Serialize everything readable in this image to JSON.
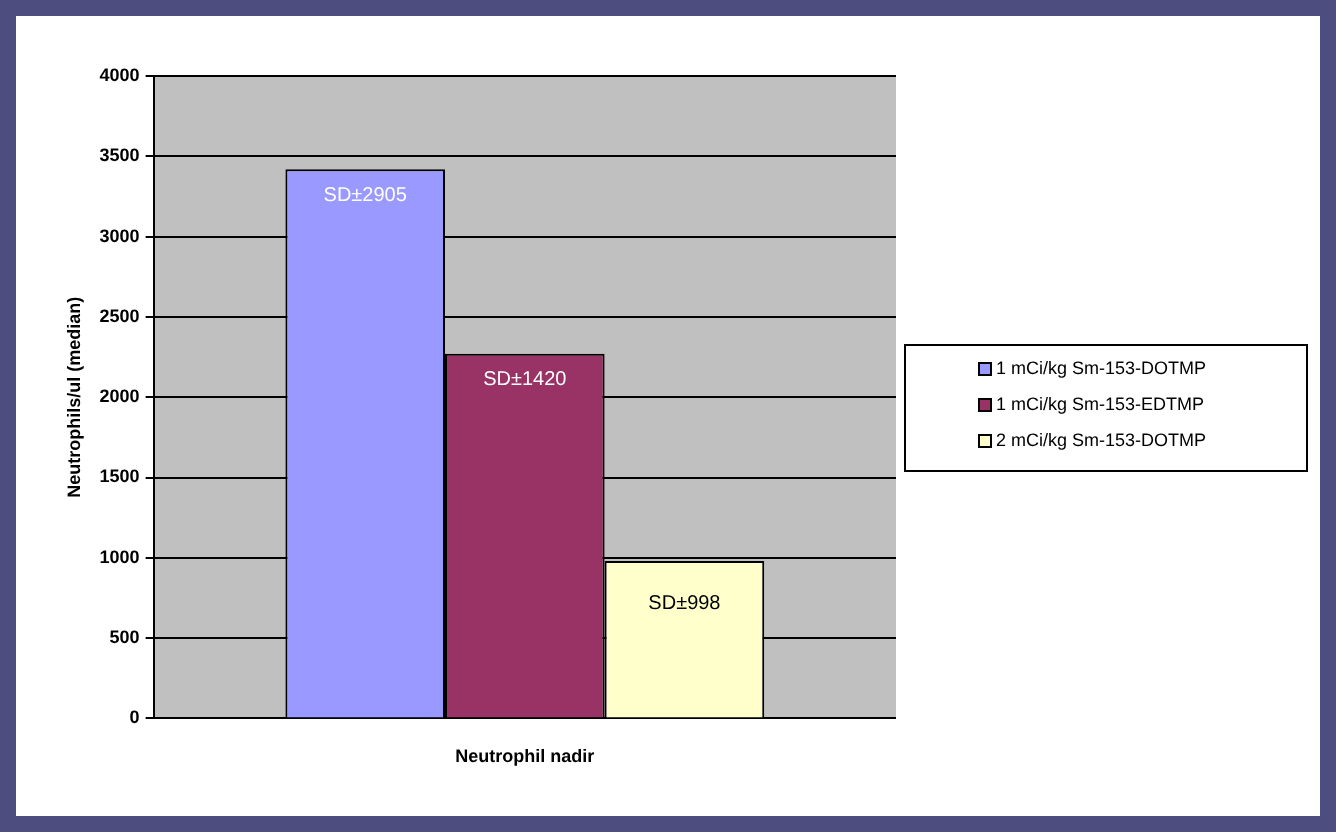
{
  "chart_data": {
    "type": "bar",
    "ylabel": "Neutrophils/ul (median)",
    "categories": [
      "Neutrophil nadir"
    ],
    "series": [
      {
        "name": "1 mCi/kg Sm-153-DOTMP",
        "color": "#9999ff",
        "values": [
          3420
        ]
      },
      {
        "name": "1 mCi/kg Sm-153-EDTMP",
        "color": "#993366",
        "values": [
          2270
        ]
      },
      {
        "name": "2 mCi/kg Sm-153-DOTMP",
        "color": "#ffffcc",
        "values": [
          980
        ]
      }
    ],
    "ylim": [
      0,
      4000
    ],
    "yticks": [
      0,
      500,
      1000,
      1500,
      2000,
      2500,
      3000,
      3500,
      4000
    ],
    "grid": "y",
    "legend": "right",
    "annotations": [
      "SD±2905",
      "SD±1420",
      "SD±998"
    ]
  }
}
